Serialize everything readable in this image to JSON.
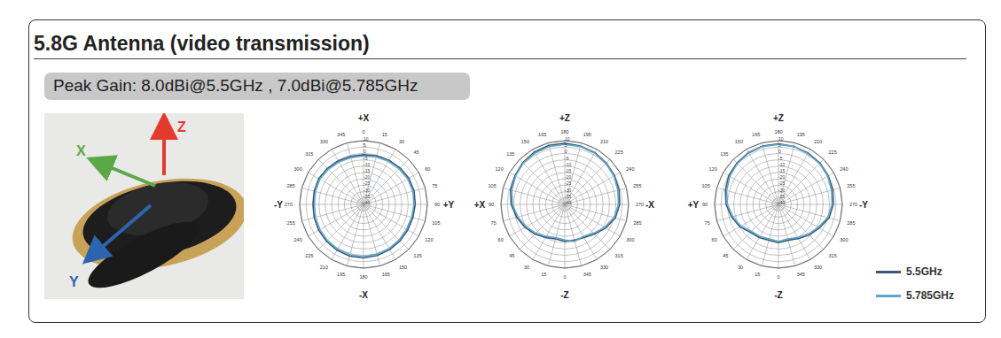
{
  "header": {
    "title": "5.8G Antenna (video transmission)",
    "peak_gain": "Peak Gain: 8.0dBi@5.5GHz , 7.0dBi@5.785GHz"
  },
  "photo": {
    "axis_labels": {
      "x": "X",
      "y": "Y",
      "z": "Z"
    }
  },
  "chart_data": [
    {
      "type": "radar",
      "axis_labels": {
        "top": "+X",
        "right": "+Y",
        "bottom": "-X",
        "left": "-Y"
      },
      "categories": [
        0,
        15,
        30,
        45,
        60,
        75,
        90,
        105,
        120,
        135,
        150,
        165,
        180,
        195,
        210,
        225,
        240,
        255,
        270,
        285,
        300,
        315,
        330,
        345
      ],
      "ylim": [
        -40,
        10
      ],
      "yticks": [
        -40,
        -35,
        -30,
        -25,
        -20,
        -15,
        -10,
        -5,
        0,
        5,
        10
      ],
      "grid": true,
      "series": [
        {
          "name": "5.5GHz",
          "color": "#34587f",
          "values": [
            -1,
            -0.5,
            0,
            0.5,
            1,
            1,
            0.5,
            0,
            0,
            0.5,
            1,
            1.5,
            2,
            2,
            1.5,
            1,
            0.5,
            0,
            -0.5,
            0,
            0.5,
            0,
            -0.5,
            -1
          ]
        },
        {
          "name": "5.785GHz",
          "color": "#5fa6c2",
          "values": [
            -2,
            -1.5,
            -1,
            -0.5,
            0,
            0,
            -0.5,
            -1,
            -1,
            -0.5,
            0,
            0.5,
            1,
            1,
            0.5,
            0,
            -0.5,
            -1,
            -1.5,
            -1,
            -0.5,
            -1,
            -1.5,
            -2
          ]
        }
      ]
    },
    {
      "type": "radar",
      "axis_labels": {
        "top": "+Z",
        "right": "-X",
        "bottom": "-Z",
        "left": "+X"
      },
      "categories": [
        180,
        195,
        210,
        225,
        240,
        255,
        270,
        285,
        300,
        315,
        330,
        345,
        0,
        15,
        30,
        45,
        60,
        75,
        90,
        105,
        120,
        135,
        150,
        165
      ],
      "ylim": [
        -40,
        10
      ],
      "yticks": [
        -40,
        -35,
        -30,
        -25,
        -20,
        -15,
        -10,
        -5,
        0,
        5,
        10
      ],
      "grid": true,
      "series": [
        {
          "name": "5.5GHz",
          "color": "#34587f",
          "values": [
            8,
            7.5,
            7,
            6,
            5,
            4,
            3,
            1,
            -3,
            -7,
            -10,
            -11,
            -11,
            -12,
            -10,
            -7,
            -4,
            -1,
            2,
            4,
            5,
            6.5,
            7.5,
            8
          ]
        },
        {
          "name": "5.785GHz",
          "color": "#5fa6c2",
          "values": [
            7,
            7,
            6.5,
            5.5,
            4.5,
            3,
            2,
            0,
            -4,
            -8,
            -11,
            -10,
            -12,
            -13,
            -11,
            -8,
            -5,
            -2,
            1,
            3,
            4.5,
            6,
            6.5,
            7
          ]
        }
      ]
    },
    {
      "type": "radar",
      "axis_labels": {
        "top": "+Z",
        "right": "-Y",
        "bottom": "-Z",
        "left": "+Y"
      },
      "categories": [
        180,
        195,
        210,
        225,
        240,
        255,
        270,
        285,
        300,
        315,
        330,
        345,
        0,
        15,
        30,
        45,
        60,
        75,
        90,
        105,
        120,
        135,
        150,
        165
      ],
      "ylim": [
        -40,
        10
      ],
      "yticks": [
        -40,
        -35,
        -30,
        -25,
        -20,
        -15,
        -10,
        -5,
        0,
        5,
        10
      ],
      "grid": true,
      "legend": "lower right",
      "series": [
        {
          "name": "5.5GHz",
          "color": "#34587f",
          "values": [
            7.5,
            7,
            6.5,
            6,
            5,
            4,
            3,
            1,
            -3,
            -6,
            -9,
            -11,
            -10,
            -11,
            -10,
            -9,
            -5,
            -2,
            1,
            3,
            5,
            6,
            7,
            7.5
          ]
        },
        {
          "name": "5.785GHz",
          "color": "#5fa6c2",
          "values": [
            7,
            7,
            6,
            5.5,
            4.5,
            3,
            2,
            0,
            -4,
            -7,
            -10,
            -12,
            -11,
            -12,
            -11,
            -10,
            -6,
            -3,
            0,
            2,
            4,
            5.5,
            6.5,
            7
          ]
        }
      ]
    }
  ]
}
